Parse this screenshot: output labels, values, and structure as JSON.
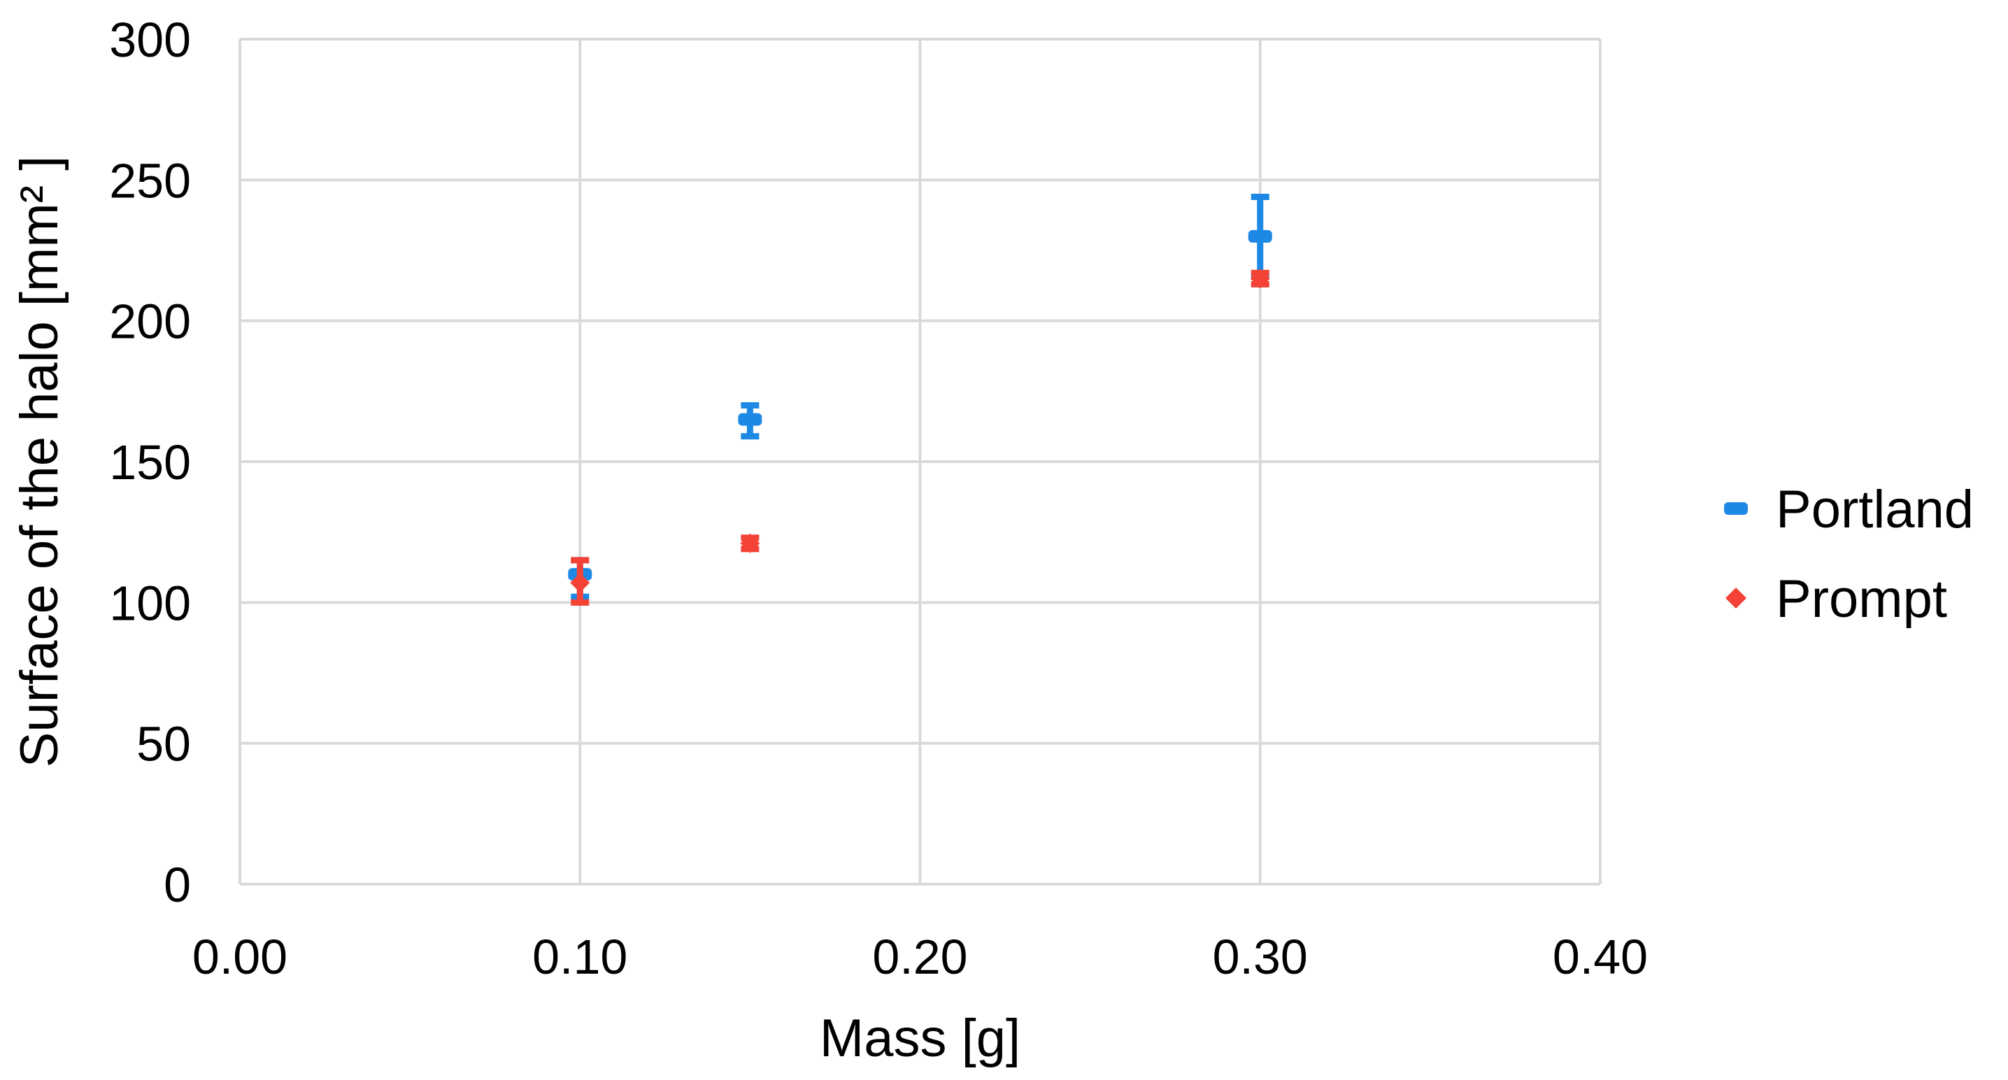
{
  "chart_data": {
    "type": "scatter",
    "title": "",
    "xlabel": "Mass [g]",
    "ylabel": "Surface of the halo [mm² ]",
    "xlim": [
      0,
      0.4
    ],
    "ylim": [
      0,
      300
    ],
    "x_ticks": [
      0,
      0.1,
      0.2,
      0.3,
      0.4
    ],
    "x_tick_labels": [
      "0.00",
      "0.10",
      "0.20",
      "0.30",
      "0.40"
    ],
    "y_ticks": [
      0,
      50,
      100,
      150,
      200,
      250,
      300
    ],
    "y_tick_labels": [
      "0",
      "50",
      "100",
      "150",
      "200",
      "250",
      "300"
    ],
    "grid": true,
    "legend_position": "right",
    "series": [
      {
        "name": "Portland",
        "color": "#1e88e5",
        "marker": "dash",
        "points": [
          {
            "x": 0.1,
            "y": 110,
            "err_low": 8,
            "err_high": 5
          },
          {
            "x": 0.15,
            "y": 165,
            "err_low": 6,
            "err_high": 5
          },
          {
            "x": 0.3,
            "y": 230,
            "err_low": 14,
            "err_high": 14
          }
        ]
      },
      {
        "name": "Prompt",
        "color": "#f44336",
        "marker": "diamond",
        "points": [
          {
            "x": 0.1,
            "y": 107,
            "err_low": 7,
            "err_high": 8
          },
          {
            "x": 0.15,
            "y": 121,
            "err_low": 2,
            "err_high": 2
          },
          {
            "x": 0.3,
            "y": 215,
            "err_low": 2,
            "err_high": 2
          }
        ]
      }
    ]
  }
}
